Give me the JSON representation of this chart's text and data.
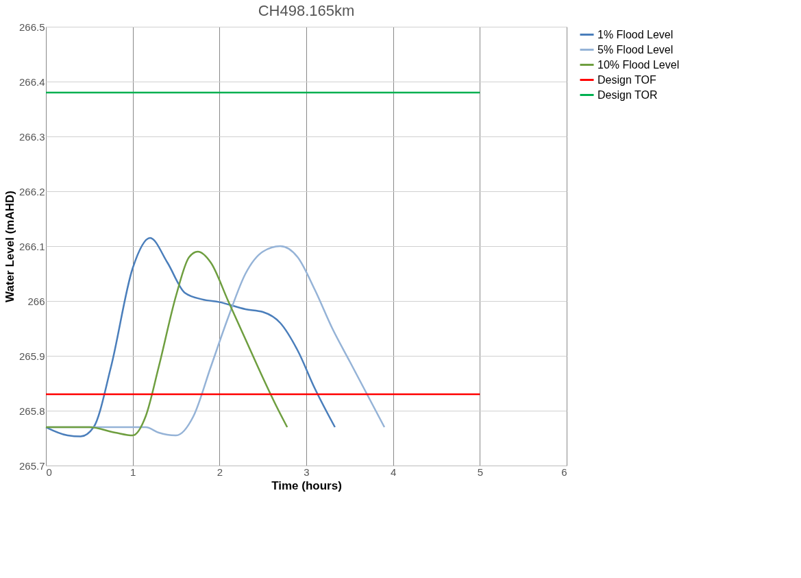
{
  "chart_data": {
    "type": "line",
    "title": "CH498.165km",
    "xlabel": "Time (hours)",
    "ylabel": "Water Level (mAHD)",
    "xlim": [
      0,
      6
    ],
    "xticks": [
      0,
      1,
      2,
      3,
      4,
      5,
      6
    ],
    "ylim": [
      265.7,
      266.5
    ],
    "yticks": [
      265.7,
      265.8,
      265.9,
      {
        "value": 266,
        "label": "266"
      },
      266.1,
      266.2,
      266.3,
      266.4,
      266.5
    ],
    "grid": true,
    "legend": "right",
    "marker": "none",
    "line_style": "solid",
    "series": [
      {
        "name": "1% Flood Level",
        "color": "#4a7ebb",
        "x": [
          0,
          0.25,
          0.4,
          0.55,
          0.75,
          1,
          1.2,
          1.4,
          1.6,
          1.8,
          2,
          2.3,
          2.5,
          2.7,
          2.9,
          3.1,
          3.33
        ],
        "values": [
          265.77,
          265.755,
          265.753,
          265.77,
          265.88,
          266.06,
          266.115,
          266.07,
          266.015,
          266.003,
          265.998,
          265.985,
          265.98,
          265.96,
          265.91,
          265.84,
          265.77
        ]
      },
      {
        "name": "5% Flood Level",
        "color": "#95b3d7",
        "x": [
          0,
          0.5,
          1,
          1.15,
          1.3,
          1.5,
          1.7,
          1.9,
          2.1,
          2.3,
          2.5,
          2.7,
          2.9,
          3.1,
          3.3,
          3.5,
          3.7,
          3.9
        ],
        "values": [
          265.77,
          265.77,
          265.77,
          265.77,
          265.76,
          265.755,
          265.79,
          265.88,
          265.97,
          266.05,
          266.09,
          266.1,
          266.08,
          266.02,
          265.95,
          265.89,
          265.83,
          265.77
        ]
      },
      {
        "name": "10% Flood Level",
        "color": "#6e9e3f",
        "x": [
          0,
          0.5,
          0.8,
          1,
          1.15,
          1.3,
          1.5,
          1.65,
          1.75,
          1.9,
          2.1,
          2.3,
          2.5,
          2.65,
          2.78
        ],
        "values": [
          265.77,
          265.77,
          265.76,
          265.755,
          265.79,
          265.88,
          266.01,
          266.08,
          266.09,
          266.07,
          266.0,
          265.93,
          265.86,
          265.81,
          265.77
        ]
      },
      {
        "name": "Design TOF",
        "color": "#ff0000",
        "x": [
          0,
          5
        ],
        "values": [
          265.83,
          265.83
        ]
      },
      {
        "name": "Design TOR",
        "color": "#00b050",
        "x": [
          0,
          5
        ],
        "values": [
          266.38,
          266.38
        ]
      }
    ]
  }
}
